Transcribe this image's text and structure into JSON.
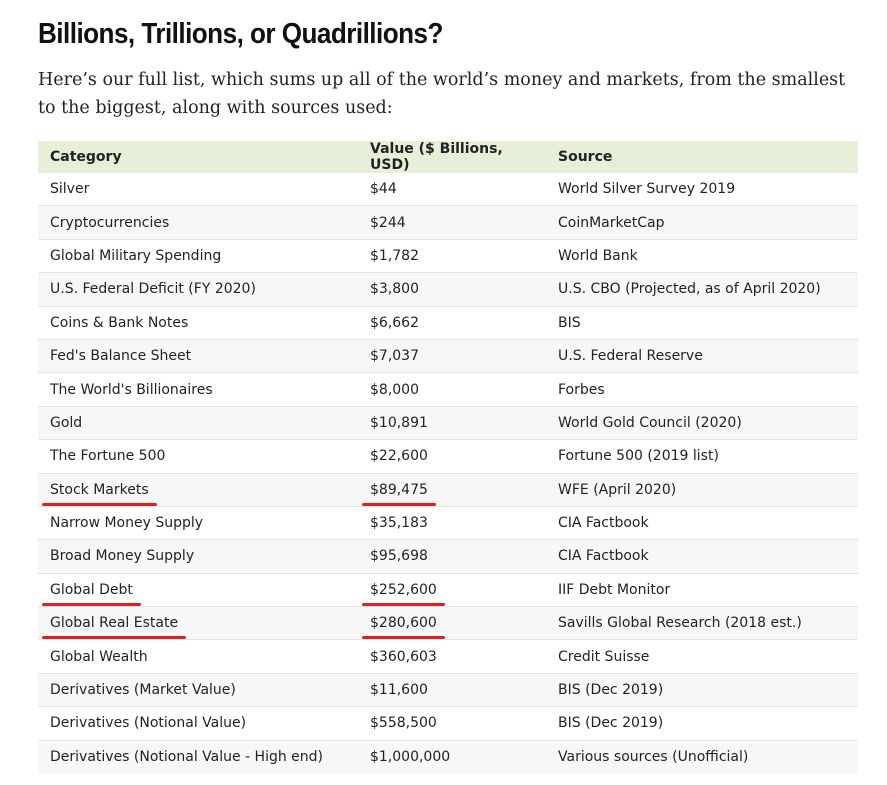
{
  "title": "Billions, Trillions, or Quadrillions?",
  "intro": "Here’s our full list, which sums up all of the world’s money and markets, from the smallest to the biggest, along with sources used:",
  "table": {
    "headers": [
      "Category",
      "Value ($ Billions, USD)",
      "Source"
    ],
    "rows": [
      {
        "category": "Silver",
        "value": "$44",
        "source": "World Silver Survey 2019"
      },
      {
        "category": "Cryptocurrencies",
        "value": "$244",
        "source": "CoinMarketCap"
      },
      {
        "category": "Global Military Spending",
        "value": "$1,782",
        "source": "World Bank"
      },
      {
        "category": "U.S. Federal Deficit (FY 2020)",
        "value": "$3,800",
        "source": "U.S. CBO (Projected, as of April 2020)"
      },
      {
        "category": "Coins & Bank Notes",
        "value": "$6,662",
        "source": "BIS"
      },
      {
        "category": "Fed's Balance Sheet",
        "value": "$7,037",
        "source": "U.S. Federal Reserve"
      },
      {
        "category": "The World's Billionaires",
        "value": "$8,000",
        "source": "Forbes"
      },
      {
        "category": "Gold",
        "value": "$10,891",
        "source": "World Gold Council (2020)"
      },
      {
        "category": "The Fortune 500",
        "value": "$22,600",
        "source": "Fortune 500 (2019 list)"
      },
      {
        "category": "Stock Markets",
        "value": "$89,475",
        "source": "WFE (April 2020)",
        "underlined": true
      },
      {
        "category": "Narrow Money Supply",
        "value": "$35,183",
        "source": "CIA Factbook"
      },
      {
        "category": "Broad Money Supply",
        "value": "$95,698",
        "source": "CIA Factbook"
      },
      {
        "category": "Global Debt",
        "value": "$252,600",
        "source": "IIF Debt Monitor",
        "underlined": true
      },
      {
        "category": "Global Real Estate",
        "value": "$280,600",
        "source": "Savills Global Research (2018 est.)",
        "underlined": true
      },
      {
        "category": "Global Wealth",
        "value": "$360,603",
        "source": "Credit Suisse"
      },
      {
        "category": "Derivatives (Market Value)",
        "value": "$11,600",
        "source": "BIS (Dec 2019)"
      },
      {
        "category": "Derivatives (Notional Value)",
        "value": "$558,500",
        "source": "BIS (Dec 2019)"
      },
      {
        "category": "Derivatives (Notional Value - High end)",
        "value": "$1,000,000",
        "source": "Various sources (Unofficial)"
      }
    ]
  },
  "colors": {
    "header_bg": "#e6efd8",
    "underline": "#e0201c",
    "row_alt": "#f7f7f7"
  }
}
